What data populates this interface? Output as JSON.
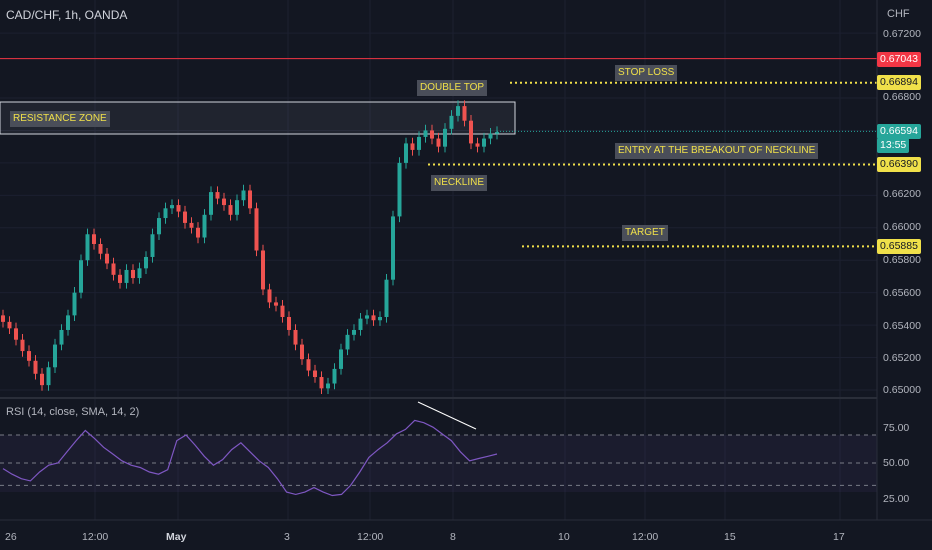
{
  "header": {
    "symbol": "CAD/CHF, 1h, OANDA",
    "currency": "CHF"
  },
  "price_axis": {
    "ticks": [
      "0.67200",
      "0.66800",
      "0.66400",
      "0.66200",
      "0.66000",
      "0.65800",
      "0.65600",
      "0.65400",
      "0.65200",
      "0.65000"
    ]
  },
  "price_tags": {
    "stop_loss_line": "0.67043",
    "stop_loss": "0.66894",
    "current": "0.66594",
    "countdown": "13:55",
    "entry": "0.66390",
    "target": "0.65885"
  },
  "annotations": {
    "resistance": "RESISTANCE ZONE",
    "double_top": "DOUBLE TOP",
    "neckline": "NECKLINE",
    "stop_loss": "STOP LOSS",
    "entry": "ENTRY AT THE BREAKOUT OF NECKLINE",
    "target": "TARGET"
  },
  "rsi": {
    "title": "RSI (14, close, SMA, 14, 2)",
    "ticks": [
      "75.00",
      "50.00",
      "25.00"
    ]
  },
  "time_axis": {
    "ticks": [
      "26",
      "12:00",
      "May",
      "3",
      "12:00",
      "8",
      "10",
      "12:00",
      "15",
      "17"
    ]
  },
  "colors": {
    "up": "#26a69a",
    "down": "#ef5350",
    "rsi": "#7e57c2",
    "level": "#f0e04a",
    "stop": "#f23645",
    "bg": "#131722"
  },
  "chart_data": {
    "type": "candlestick",
    "symbol": "CAD/CHF",
    "timeframe": "1h",
    "close": [
      0.6542,
      0.6538,
      0.6531,
      0.6524,
      0.6518,
      0.651,
      0.6503,
      0.6514,
      0.6528,
      0.6537,
      0.6546,
      0.656,
      0.658,
      0.6596,
      0.659,
      0.6584,
      0.6578,
      0.6571,
      0.6566,
      0.6574,
      0.6569,
      0.6575,
      0.6582,
      0.6596,
      0.6606,
      0.6612,
      0.6614,
      0.661,
      0.6603,
      0.66,
      0.6594,
      0.6608,
      0.6622,
      0.6618,
      0.6614,
      0.6608,
      0.6617,
      0.6623,
      0.6612,
      0.6586,
      0.6562,
      0.6554,
      0.6552,
      0.6545,
      0.6537,
      0.6528,
      0.6519,
      0.6512,
      0.6508,
      0.6501,
      0.6504,
      0.6513,
      0.6525,
      0.6534,
      0.6537,
      0.6544,
      0.6546,
      0.6543,
      0.6545,
      0.6568,
      0.6607,
      0.664,
      0.6652,
      0.6648,
      0.6656,
      0.666,
      0.6655,
      0.665,
      0.6661,
      0.6669,
      0.6675,
      0.6666,
      0.6652,
      0.665,
      0.6655,
      0.6658,
      0.6659
    ],
    "price_range": [
      0.6498,
      0.6728
    ],
    "levels": [
      {
        "label": "STOP LOSS",
        "value": 0.66894
      },
      {
        "label": "ENTRY AT THE BREAKOUT OF NECKLINE",
        "value": 0.6639
      },
      {
        "label": "TARGET",
        "value": 0.65885
      },
      {
        "label": "",
        "value": 0.67043
      }
    ],
    "resistance_zone": [
      0.6664,
      0.668
    ],
    "rsi": [
      45,
      40,
      36,
      34,
      42,
      48,
      50,
      60,
      70,
      79,
      72,
      64,
      58,
      52,
      48,
      46,
      42,
      40,
      44,
      70,
      75,
      66,
      56,
      48,
      53,
      62,
      68,
      60,
      52,
      46,
      36,
      24,
      22,
      24,
      28,
      24,
      21,
      22,
      30,
      42,
      55,
      62,
      68,
      76,
      80,
      88,
      86,
      82,
      76,
      70,
      60,
      52,
      54,
      56,
      58
    ]
  }
}
